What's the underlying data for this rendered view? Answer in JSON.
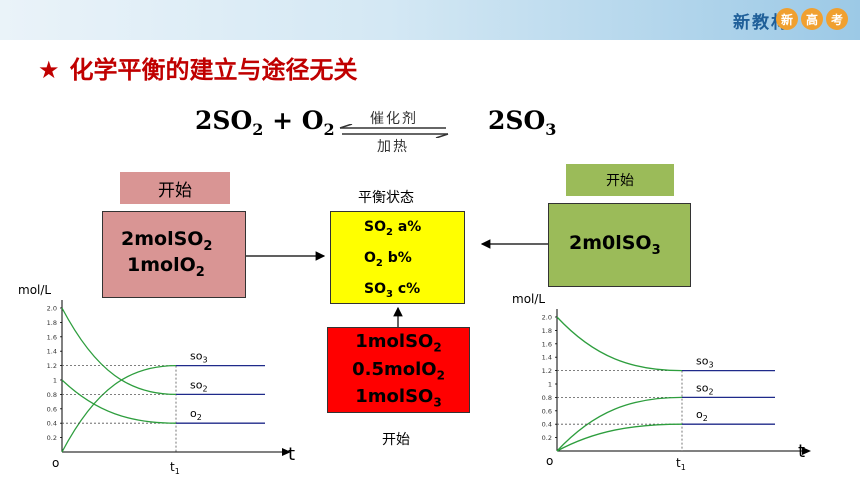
{
  "header": {
    "brand": "新教材",
    "badges": [
      "新",
      "高",
      "考"
    ]
  },
  "title": {
    "star": "★",
    "text": "化学平衡的建立与途径无关"
  },
  "equation": {
    "lhs1": "2SO",
    "lhs1_sub": "2",
    "plus": "+ O",
    "lhs2_sub": "2",
    "rhs": "2SO",
    "rhs_sub": "3",
    "catalyst": "催化剂",
    "heat": "加热"
  },
  "left_block": {
    "label": "开始",
    "line1": "2molSO",
    "line1_sub": "2",
    "line2": "1molO",
    "line2_sub": "2"
  },
  "right_block": {
    "label": "开始",
    "line1": "2m0lSO",
    "line1_sub": "3"
  },
  "center_block": {
    "title": "平衡状态",
    "so2": "SO",
    "so2_sub": "2",
    "so2_val": " a%",
    "o2": "O",
    "o2_sub": "2",
    "o2_val": " b%",
    "so3": "SO",
    "so3_sub": "3",
    "so3_val": " c%"
  },
  "bottom_block": {
    "line1": "1molSO",
    "line1_sub": "2",
    "line2": "0.5molO",
    "line2_sub": "2",
    "line3": "1molSO",
    "line3_sub": "3",
    "label": "开始"
  },
  "chart_data": [
    {
      "type": "line",
      "ylabel": "mol/L",
      "xlabel": "t",
      "origin_label": "o",
      "t_label": "t",
      "t_sub": "1",
      "ylim": [
        0,
        2.0
      ],
      "y_ticks": [
        "0.2",
        "0.4",
        "0.6",
        "0.8",
        "1",
        "1.2",
        "1.4",
        "1.6",
        "1.8",
        "2.0"
      ],
      "t1": 1,
      "series": [
        {
          "name": "so",
          "sub": "3",
          "start": 0.0,
          "end": 1.2
        },
        {
          "name": "so",
          "sub": "2",
          "start": 2.0,
          "end": 0.8
        },
        {
          "name": "o",
          "sub": "2",
          "start": 1.0,
          "end": 0.4
        }
      ]
    },
    {
      "type": "line",
      "ylabel": "mol/L",
      "xlabel": "t",
      "origin_label": "o",
      "t_label": "t",
      "t_sub": "1",
      "ylim": [
        0,
        2.0
      ],
      "y_ticks": [
        "0.2",
        "0.4",
        "0.6",
        "0.8",
        "1",
        "1.2",
        "1.4",
        "1.6",
        "1.8",
        "2.0"
      ],
      "t1": 1,
      "series": [
        {
          "name": "so",
          "sub": "3",
          "start": 2.0,
          "end": 1.2
        },
        {
          "name": "so",
          "sub": "2",
          "start": 0.0,
          "end": 0.8
        },
        {
          "name": "o",
          "sub": "2",
          "start": 0.0,
          "end": 0.4
        }
      ]
    }
  ]
}
